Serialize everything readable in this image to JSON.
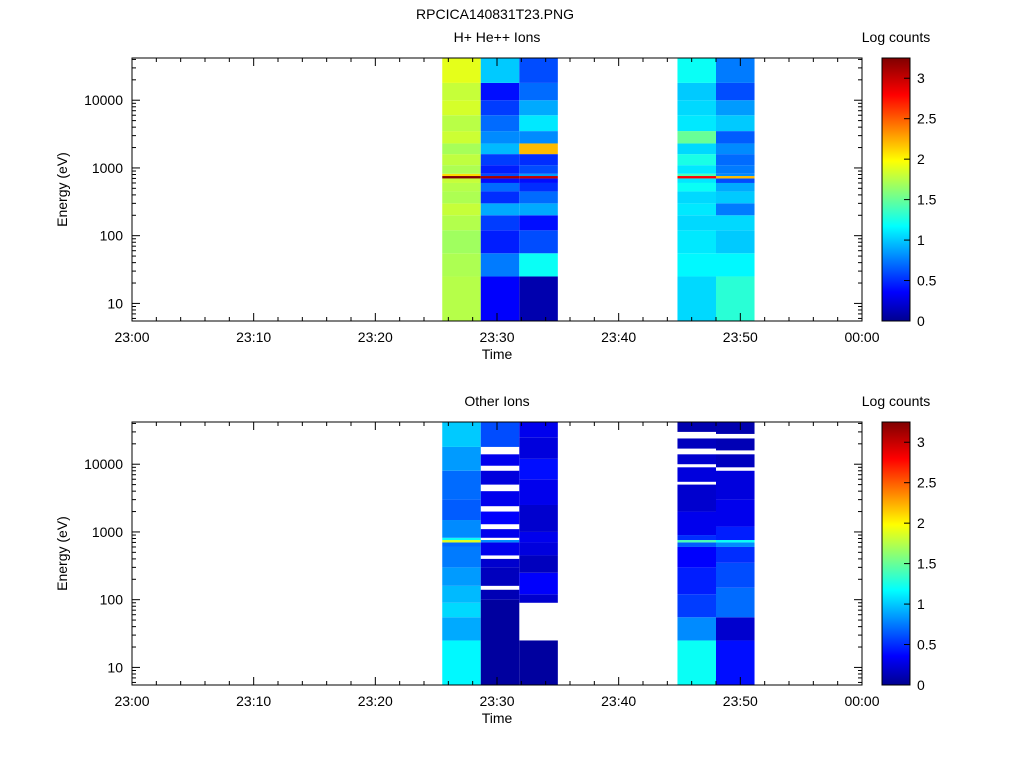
{
  "title": "RPCICA140831T23.PNG",
  "chart_data": [
    {
      "type": "heatmap",
      "title": "H+ He++ Ions",
      "xlabel": "Time",
      "ylabel": "Energy (eV)",
      "y_scale": "log",
      "ylim": [
        5.5,
        42000
      ],
      "x_ticks": [
        "23:00",
        "23:10",
        "23:20",
        "23:30",
        "23:40",
        "23:50",
        "00:00"
      ],
      "y_ticks": [
        "10",
        "100",
        "1000",
        "10000"
      ],
      "colorbar": {
        "label": "Log counts",
        "range": [
          0,
          3.25
        ],
        "ticks": [
          "0",
          "0.5",
          "1",
          "1.5",
          "2",
          "2.5",
          "3"
        ]
      },
      "columns": [
        {
          "start": "23:25:30",
          "end": "23:28:40",
          "bins": [
            [
              5.5,
              25,
              1.75
            ],
            [
              25,
              55,
              1.72
            ],
            [
              55,
              120,
              1.68
            ],
            [
              120,
              200,
              1.74
            ],
            [
              200,
              300,
              1.8
            ],
            [
              300,
              450,
              1.72
            ],
            [
              450,
              600,
              1.75
            ],
            [
              600,
              700,
              1.8
            ],
            [
              700,
              760,
              3.25
            ],
            [
              760,
              820,
              2.1
            ],
            [
              820,
              1100,
              1.72
            ],
            [
              1100,
              1600,
              1.78
            ],
            [
              1600,
              2300,
              1.7
            ],
            [
              2300,
              3500,
              1.82
            ],
            [
              3500,
              6000,
              1.76
            ],
            [
              6000,
              10000,
              1.85
            ],
            [
              10000,
              18000,
              1.8
            ],
            [
              18000,
              42000,
              1.9
            ]
          ]
        },
        {
          "start": "23:28:40",
          "end": "23:31:50",
          "bins": [
            [
              5.5,
              25,
              0.35
            ],
            [
              25,
              55,
              0.75
            ],
            [
              55,
              120,
              0.45
            ],
            [
              120,
              200,
              0.55
            ],
            [
              200,
              300,
              0.9
            ],
            [
              300,
              450,
              0.5
            ],
            [
              450,
              600,
              0.7
            ],
            [
              600,
              700,
              0.4
            ],
            [
              700,
              760,
              3.1
            ],
            [
              760,
              820,
              0.6
            ],
            [
              820,
              1100,
              0.45
            ],
            [
              1100,
              1600,
              0.55
            ],
            [
              1600,
              2300,
              0.95
            ],
            [
              2300,
              3500,
              0.8
            ],
            [
              3500,
              6000,
              0.7
            ],
            [
              6000,
              10000,
              0.55
            ],
            [
              10000,
              18000,
              0.4
            ],
            [
              18000,
              42000,
              1.0
            ]
          ]
        },
        {
          "start": "23:31:50",
          "end": "23:35:00",
          "bins": [
            [
              5.5,
              25,
              0.1
            ],
            [
              25,
              55,
              1.2
            ],
            [
              55,
              120,
              0.6
            ],
            [
              120,
              200,
              0.4
            ],
            [
              200,
              300,
              0.9
            ],
            [
              300,
              450,
              0.7
            ],
            [
              450,
              600,
              0.5
            ],
            [
              600,
              700,
              0.4
            ],
            [
              700,
              760,
              3.0
            ],
            [
              760,
              820,
              0.85
            ],
            [
              820,
              1100,
              0.6
            ],
            [
              1100,
              1600,
              0.5
            ],
            [
              1600,
              2300,
              2.2
            ],
            [
              2300,
              3500,
              0.8
            ],
            [
              3500,
              6000,
              1.1
            ],
            [
              6000,
              10000,
              0.9
            ],
            [
              10000,
              18000,
              0.7
            ],
            [
              18000,
              42000,
              0.6
            ]
          ]
        },
        {
          "start": "23:44:50",
          "end": "23:48:00",
          "bins": [
            [
              5.5,
              25,
              1.05
            ],
            [
              25,
              55,
              1.15
            ],
            [
              55,
              120,
              1.1
            ],
            [
              120,
              200,
              1.05
            ],
            [
              200,
              300,
              1.1
            ],
            [
              300,
              450,
              1.05
            ],
            [
              450,
              600,
              1.2
            ],
            [
              600,
              700,
              1.1
            ],
            [
              700,
              760,
              2.8
            ],
            [
              760,
              820,
              1.4
            ],
            [
              820,
              1100,
              1.1
            ],
            [
              1100,
              1600,
              1.25
            ],
            [
              1600,
              2300,
              1.05
            ],
            [
              2300,
              3500,
              1.5
            ],
            [
              3500,
              6000,
              1.1
            ],
            [
              6000,
              10000,
              1.05
            ],
            [
              10000,
              18000,
              1.0
            ],
            [
              18000,
              42000,
              1.2
            ]
          ]
        },
        {
          "start": "23:48:00",
          "end": "23:51:10",
          "bins": [
            [
              5.5,
              25,
              1.3
            ],
            [
              25,
              55,
              1.15
            ],
            [
              55,
              120,
              1.0
            ],
            [
              120,
              200,
              1.05
            ],
            [
              200,
              300,
              0.75
            ],
            [
              300,
              450,
              1.0
            ],
            [
              450,
              600,
              0.9
            ],
            [
              600,
              700,
              0.6
            ],
            [
              700,
              760,
              2.2
            ],
            [
              760,
              820,
              0.8
            ],
            [
              820,
              1100,
              0.75
            ],
            [
              1100,
              1600,
              0.7
            ],
            [
              1600,
              2300,
              0.8
            ],
            [
              2300,
              3500,
              0.65
            ],
            [
              3500,
              6000,
              1.0
            ],
            [
              6000,
              10000,
              0.85
            ],
            [
              10000,
              18000,
              0.6
            ],
            [
              18000,
              42000,
              0.75
            ]
          ]
        }
      ]
    },
    {
      "type": "heatmap",
      "title": "Other Ions",
      "xlabel": "Time",
      "ylabel": "Energy (eV)",
      "y_scale": "log",
      "ylim": [
        5.5,
        42000
      ],
      "x_ticks": [
        "23:00",
        "23:10",
        "23:20",
        "23:30",
        "23:40",
        "23:50",
        "00:00"
      ],
      "y_ticks": [
        "10",
        "100",
        "1000",
        "10000"
      ],
      "colorbar": {
        "label": "Log counts",
        "range": [
          0,
          3.25
        ],
        "ticks": [
          "0",
          "0.5",
          "1",
          "1.5",
          "2",
          "2.5",
          "3"
        ]
      },
      "columns": [
        {
          "start": "23:25:30",
          "end": "23:28:40",
          "bins": [
            [
              5.5,
              25,
              1.15
            ],
            [
              25,
              55,
              0.9
            ],
            [
              55,
              90,
              1.05
            ],
            [
              90,
              160,
              0.95
            ],
            [
              160,
              300,
              0.85
            ],
            [
              300,
              600,
              0.75
            ],
            [
              600,
              700,
              0.7
            ],
            [
              700,
              760,
              1.9
            ],
            [
              760,
              820,
              1.2
            ],
            [
              820,
              1500,
              0.8
            ],
            [
              1500,
              3000,
              0.65
            ],
            [
              3000,
              8000,
              0.7
            ],
            [
              8000,
              18000,
              0.85
            ],
            [
              18000,
              42000,
              1.0
            ]
          ]
        },
        {
          "start": "23:28:40",
          "end": "23:31:50",
          "bins": [
            [
              5.5,
              100,
              0.05
            ],
            [
              100,
              140,
              0.12
            ],
            [
              160,
              300,
              0.15
            ],
            [
              300,
              400,
              0.2
            ],
            [
              450,
              700,
              0.3
            ],
            [
              700,
              760,
              0.8
            ],
            [
              820,
              1100,
              0.3
            ],
            [
              1300,
              2000,
              0.35
            ],
            [
              2400,
              4000,
              0.3
            ],
            [
              5000,
              8000,
              0.25
            ],
            [
              9500,
              14000,
              0.3
            ],
            [
              18000,
              42000,
              0.6
            ]
          ]
        },
        {
          "start": "23:31:50",
          "end": "23:35:00",
          "bins": [
            [
              5.5,
              25,
              0.05
            ],
            [
              90,
              120,
              0.2
            ],
            [
              120,
              250,
              0.35
            ],
            [
              250,
              450,
              0.15
            ],
            [
              450,
              700,
              0.25
            ],
            [
              700,
              1000,
              0.3
            ],
            [
              1000,
              2500,
              0.2
            ],
            [
              2500,
              6000,
              0.3
            ],
            [
              6000,
              12000,
              0.4
            ],
            [
              12000,
              25000,
              0.25
            ],
            [
              25000,
              42000,
              0.3
            ]
          ]
        },
        {
          "start": "23:44:50",
          "end": "23:48:00",
          "bins": [
            [
              5.5,
              25,
              1.2
            ],
            [
              25,
              55,
              0.8
            ],
            [
              55,
              120,
              0.55
            ],
            [
              120,
              300,
              0.45
            ],
            [
              300,
              600,
              0.35
            ],
            [
              600,
              700,
              0.65
            ],
            [
              700,
              760,
              1.4
            ],
            [
              760,
              900,
              0.5
            ],
            [
              900,
              2000,
              0.3
            ],
            [
              2000,
              5000,
              0.2
            ],
            [
              5500,
              9000,
              0.25
            ],
            [
              10000,
              14000,
              0.2
            ],
            [
              17000,
              24000,
              0.15
            ],
            [
              30000,
              42000,
              0.1
            ]
          ]
        },
        {
          "start": "23:48:00",
          "end": "23:51:10",
          "bins": [
            [
              5.5,
              25,
              0.4
            ],
            [
              25,
              55,
              0.2
            ],
            [
              55,
              150,
              0.7
            ],
            [
              150,
              350,
              0.6
            ],
            [
              350,
              600,
              0.5
            ],
            [
              600,
              700,
              0.8
            ],
            [
              700,
              760,
              1.2
            ],
            [
              760,
              1200,
              0.45
            ],
            [
              1200,
              3000,
              0.3
            ],
            [
              3000,
              8000,
              0.25
            ],
            [
              9000,
              14000,
              0.15
            ],
            [
              16000,
              24000,
              0.12
            ],
            [
              28000,
              42000,
              0.1
            ]
          ]
        }
      ]
    }
  ]
}
